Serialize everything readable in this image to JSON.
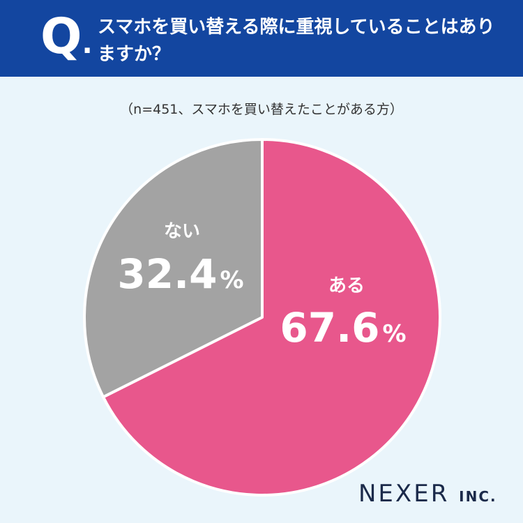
{
  "header": {
    "q_letter": "Q",
    "q_dot": ".",
    "question": "スマホを買い替える際に重視していることはありますか？"
  },
  "sample_note": "（n=451、スマホを買い替えたことがある方）",
  "chart_data": {
    "type": "pie",
    "categories": [
      "ある",
      "ない"
    ],
    "values": [
      67.6,
      32.4
    ],
    "value_labels": [
      "67.6",
      "32.4"
    ],
    "unit": "%",
    "colors": [
      "#e8578c",
      "#a3a3a3"
    ],
    "start": "12 o'clock, clockwise"
  },
  "brand": {
    "name": "NEXER",
    "suffix": "INC."
  }
}
